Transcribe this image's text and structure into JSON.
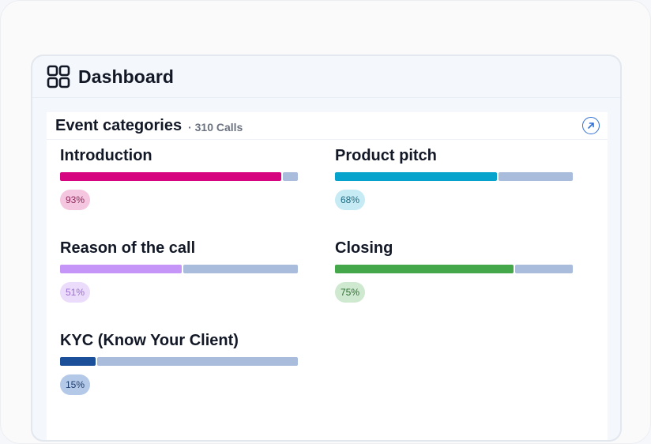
{
  "header": {
    "title": "Dashboard",
    "icon": "dashboard-grid-icon"
  },
  "card": {
    "title": "Event categories",
    "subtitle": "· 310 Calls",
    "open_icon": "arrow-up-right-icon",
    "items": [
      {
        "label": "Introduction",
        "percent": 93,
        "badge": "93%",
        "color": "#d6047e",
        "badge_bg": "#f5c6df",
        "badge_fg": "#8e2a5c"
      },
      {
        "label": "Product pitch",
        "percent": 68,
        "badge": "68%",
        "color": "#06a3cc",
        "badge_bg": "#c6ebf5",
        "badge_fg": "#1f6b80"
      },
      {
        "label": "Reason of the call",
        "percent": 51,
        "badge": "51%",
        "color": "#c596f7",
        "badge_bg": "#ecdcfb",
        "badge_fg": "#9a6fcd"
      },
      {
        "label": "Closing",
        "percent": 75,
        "badge": "75%",
        "color": "#44a749",
        "badge_bg": "#cfe9d0",
        "badge_fg": "#2f6e33"
      },
      {
        "label": "KYC (Know Your Client)",
        "percent": 15,
        "badge": "15%",
        "color": "#1c4f9a",
        "badge_bg": "#b4c8e8",
        "badge_fg": "#1c3d6e"
      }
    ]
  }
}
